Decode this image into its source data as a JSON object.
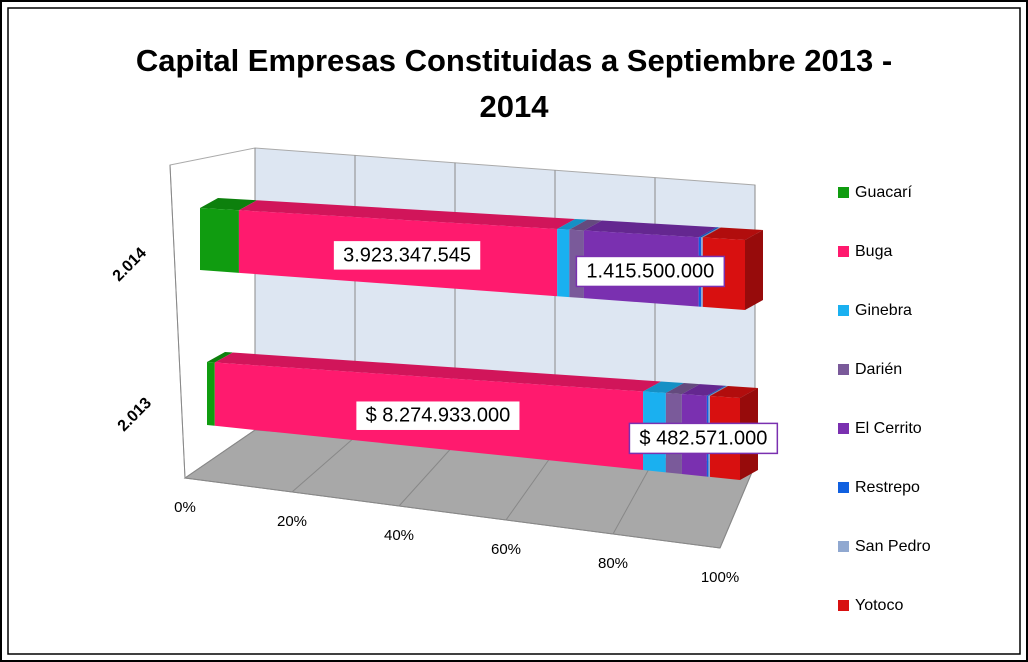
{
  "chart_data": {
    "type": "bar3d_stacked_percent",
    "title": "Capital Empresas Constituidas a Septiembre 2013 - 2014",
    "categories": [
      "2.013",
      "2.014"
    ],
    "series": [
      {
        "name": "Guacarí",
        "color": "#109c10",
        "values": [
          150000000,
          480000000
        ]
      },
      {
        "name": "Buga",
        "color": "#ff1a6e",
        "values": [
          8274933000,
          3923347545
        ],
        "value_labels": [
          "$ 8.274.933.000",
          "3.923.347.545"
        ]
      },
      {
        "name": "Ginebra",
        "color": "#1ab0f0",
        "values": [
          440000000,
          150000000
        ]
      },
      {
        "name": "Darién",
        "color": "#7a5a9a",
        "values": [
          310000000,
          180000000
        ]
      },
      {
        "name": "El Cerrito",
        "color": "#7a30b0",
        "values": [
          482571000,
          1415500000
        ],
        "value_labels": [
          "$ 482.571.000",
          "1.415.500.000"
        ]
      },
      {
        "name": "Restrepo",
        "color": "#1060e0",
        "values": [
          30000000,
          30000000
        ]
      },
      {
        "name": "San Pedro",
        "color": "#90a8d0",
        "values": [
          30000000,
          20000000
        ]
      },
      {
        "name": "Yotoco",
        "color": "#d81010",
        "values": [
          580000000,
          520000000
        ]
      }
    ],
    "xlim": [
      0,
      100
    ],
    "xticks": [
      {
        "value": 0,
        "label": "0%"
      },
      {
        "value": 20,
        "label": "20%"
      },
      {
        "value": 40,
        "label": "40%"
      },
      {
        "value": 60,
        "label": "60%"
      },
      {
        "value": 80,
        "label": "80%"
      },
      {
        "value": 100,
        "label": "100%"
      }
    ],
    "grid": true,
    "legend": "right"
  }
}
